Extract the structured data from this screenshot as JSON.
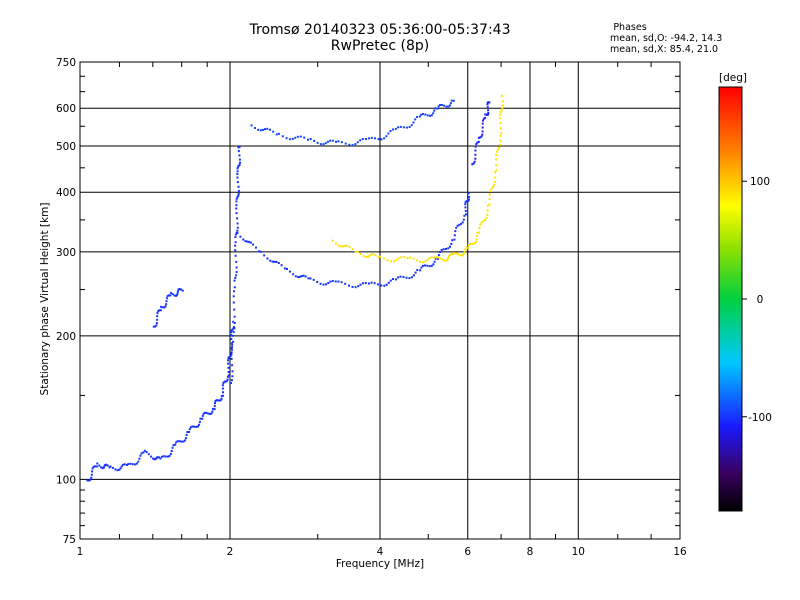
{
  "chart_data": {
    "type": "scatter",
    "title": "Tromsø 20140323 05:36:00-05:37:43",
    "subtitle": "RwPretec (8p)",
    "stats": {
      "heading": "Phases",
      "line_o": "mean, sd,O: -94.2, 14.3",
      "line_x": "mean, sd,X:  85.4, 21.0"
    },
    "xlabel": "Frequency [MHz]",
    "ylabel": "Stationary phase Virtual Height [km]",
    "x_scale": "log",
    "y_scale": "log",
    "xlim": [
      1,
      16
    ],
    "ylim": [
      75,
      750
    ],
    "x_ticks": [
      1,
      2,
      4,
      6,
      8,
      10,
      16
    ],
    "x_tick_labels": [
      "1",
      "2",
      "4",
      "6",
      "8",
      "10",
      "16"
    ],
    "y_ticks": [
      75,
      100,
      200,
      300,
      400,
      500,
      600,
      750
    ],
    "y_tick_labels": [
      "75",
      "100",
      "200",
      "300",
      "400",
      "500",
      "600",
      "750"
    ],
    "grid": true,
    "colorbar": {
      "label": "[deg]",
      "min": -180,
      "max": 180,
      "ticks": [
        -100,
        0,
        100
      ],
      "tick_labels": [
        "-100",
        "0",
        "100"
      ]
    },
    "traces": [
      {
        "phase": -100,
        "points": [
          [
            1.03,
            100
          ],
          [
            1.08,
            108
          ],
          [
            1.15,
            106
          ],
          [
            1.25,
            107
          ],
          [
            1.35,
            114
          ],
          [
            1.45,
            110
          ],
          [
            1.55,
            118
          ],
          [
            1.65,
            126
          ],
          [
            1.75,
            135
          ],
          [
            1.85,
            142
          ],
          [
            1.92,
            152
          ],
          [
            1.97,
            168
          ],
          [
            2.0,
            190
          ],
          [
            2.02,
            215
          ]
        ]
      },
      {
        "phase": -100,
        "points": [
          [
            1.4,
            210
          ],
          [
            1.45,
            230
          ],
          [
            1.52,
            245
          ],
          [
            1.6,
            250
          ]
        ]
      },
      {
        "phase": -100,
        "points": [
          [
            2.0,
            160
          ],
          [
            2.02,
            200
          ],
          [
            2.04,
            260
          ],
          [
            2.05,
            320
          ],
          [
            2.06,
            380
          ],
          [
            2.07,
            440
          ],
          [
            2.08,
            500
          ]
        ]
      },
      {
        "phase": -100,
        "points": [
          [
            2.06,
            330
          ],
          [
            2.3,
            300
          ],
          [
            2.6,
            275
          ],
          [
            2.9,
            262
          ],
          [
            3.3,
            258
          ],
          [
            3.8,
            256
          ],
          [
            4.3,
            262
          ],
          [
            4.8,
            275
          ],
          [
            5.2,
            292
          ],
          [
            5.6,
            322
          ],
          [
            5.9,
            365
          ],
          [
            6.0,
            400
          ]
        ]
      },
      {
        "phase": -95,
        "points": [
          [
            2.2,
            555
          ],
          [
            2.5,
            530
          ],
          [
            2.9,
            515
          ],
          [
            3.3,
            508
          ],
          [
            3.8,
            515
          ],
          [
            4.3,
            540
          ],
          [
            4.8,
            575
          ],
          [
            5.2,
            600
          ],
          [
            5.6,
            625
          ]
        ]
      },
      {
        "phase": 90,
        "points": [
          [
            3.2,
            318
          ],
          [
            3.6,
            300
          ],
          [
            4.0,
            292
          ],
          [
            4.6,
            290
          ],
          [
            5.2,
            290
          ],
          [
            5.6,
            295
          ],
          [
            6.0,
            305
          ],
          [
            6.3,
            330
          ],
          [
            6.6,
            380
          ],
          [
            6.8,
            450
          ],
          [
            6.95,
            540
          ],
          [
            7.0,
            640
          ]
        ]
      },
      {
        "phase": -105,
        "points": [
          [
            6.1,
            460
          ],
          [
            6.3,
            520
          ],
          [
            6.5,
            580
          ],
          [
            6.6,
            620
          ]
        ]
      }
    ]
  }
}
